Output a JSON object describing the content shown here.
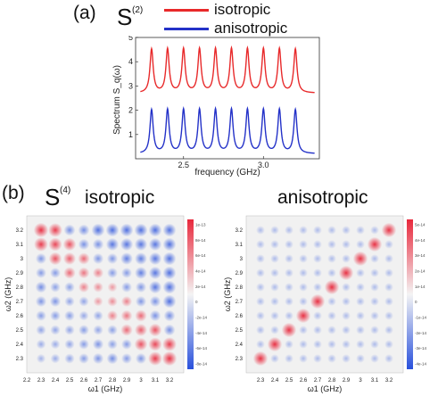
{
  "panel_a": {
    "label": "(a)",
    "title_base": "S",
    "title_sup": "(2)",
    "legend": [
      {
        "label": "isotropic",
        "color": "#e8292a"
      },
      {
        "label": "anisotropic",
        "color": "#2331c8"
      }
    ]
  },
  "panel_b": {
    "label": "(b)",
    "title_base": "S",
    "title_sup": "(4)",
    "left_title": "isotropic",
    "right_title": "anisotropic"
  },
  "chart_data": [
    {
      "type": "line",
      "title": "S(2)",
      "xlabel": "frequency (GHz)",
      "ylabel": "Spectrum S_q(ω)",
      "xlim": [
        2.2,
        3.35
      ],
      "ylim": [
        0,
        5
      ],
      "xticks": [
        "2.5",
        "3.0"
      ],
      "yticks": [
        "1",
        "2",
        "3",
        "4",
        "5"
      ],
      "peak_x": [
        2.3,
        2.4,
        2.5,
        2.6,
        2.7,
        2.8,
        2.9,
        3.0,
        3.1,
        3.2
      ],
      "series": [
        {
          "name": "isotropic",
          "color": "#e8292a",
          "baseline": 2.7,
          "peak": 4.5
        },
        {
          "name": "anisotropic",
          "color": "#2331c8",
          "baseline": 0.2,
          "peak": 2.0
        }
      ]
    },
    {
      "type": "heatmap",
      "title": "isotropic",
      "xlabel": "ω1 (GHz)",
      "ylabel": "ω2 (GHz)",
      "x": [
        2.3,
        2.4,
        2.5,
        2.6,
        2.7,
        2.8,
        2.9,
        3.0,
        3.1,
        3.2
      ],
      "y": [
        2.3,
        2.4,
        2.5,
        2.6,
        2.7,
        2.8,
        2.9,
        3.0,
        3.1,
        3.2
      ],
      "xticks": [
        "2.2",
        "2.3",
        "2.4",
        "2.5",
        "2.6",
        "2.7",
        "2.8",
        "2.9",
        "3",
        "3.1",
        "3.2"
      ],
      "yticks": [
        "2.3",
        "2.4",
        "2.5",
        "2.6",
        "2.7",
        "2.8",
        "2.9",
        "3",
        "3.1",
        "3.2"
      ],
      "colorbar_ticks": [
        "1e-13",
        "8e-14",
        "6e-14",
        "4e-14",
        "2e-14",
        "0",
        "-2e-14",
        "-4e-14",
        "-6e-14",
        "-8e-14"
      ],
      "pattern": "positive values near the anti-diagonal, negative values elsewhere"
    },
    {
      "type": "heatmap",
      "title": "anisotropic",
      "xlabel": "ω1 (GHz)",
      "ylabel": "ω2 (GHz)",
      "x": [
        2.3,
        2.4,
        2.5,
        2.6,
        2.7,
        2.8,
        2.9,
        3.0,
        3.1,
        3.2
      ],
      "y": [
        2.3,
        2.4,
        2.5,
        2.6,
        2.7,
        2.8,
        2.9,
        3.0,
        3.1,
        3.2
      ],
      "xticks": [
        "2.3",
        "2.4",
        "2.5",
        "2.6",
        "2.7",
        "2.8",
        "2.9",
        "3",
        "3.1",
        "3.2"
      ],
      "yticks": [
        "2.3",
        "2.4",
        "2.5",
        "2.6",
        "2.7",
        "2.8",
        "2.9",
        "3",
        "3.1",
        "3.2"
      ],
      "colorbar_ticks": [
        "5e-14",
        "4e-14",
        "3e-14",
        "2e-14",
        "1e-14",
        "0",
        "-1e-14",
        "-2e-14",
        "-3e-14",
        "-4e-14"
      ],
      "pattern": "positive values on the diagonal, weak negative values elsewhere"
    }
  ]
}
